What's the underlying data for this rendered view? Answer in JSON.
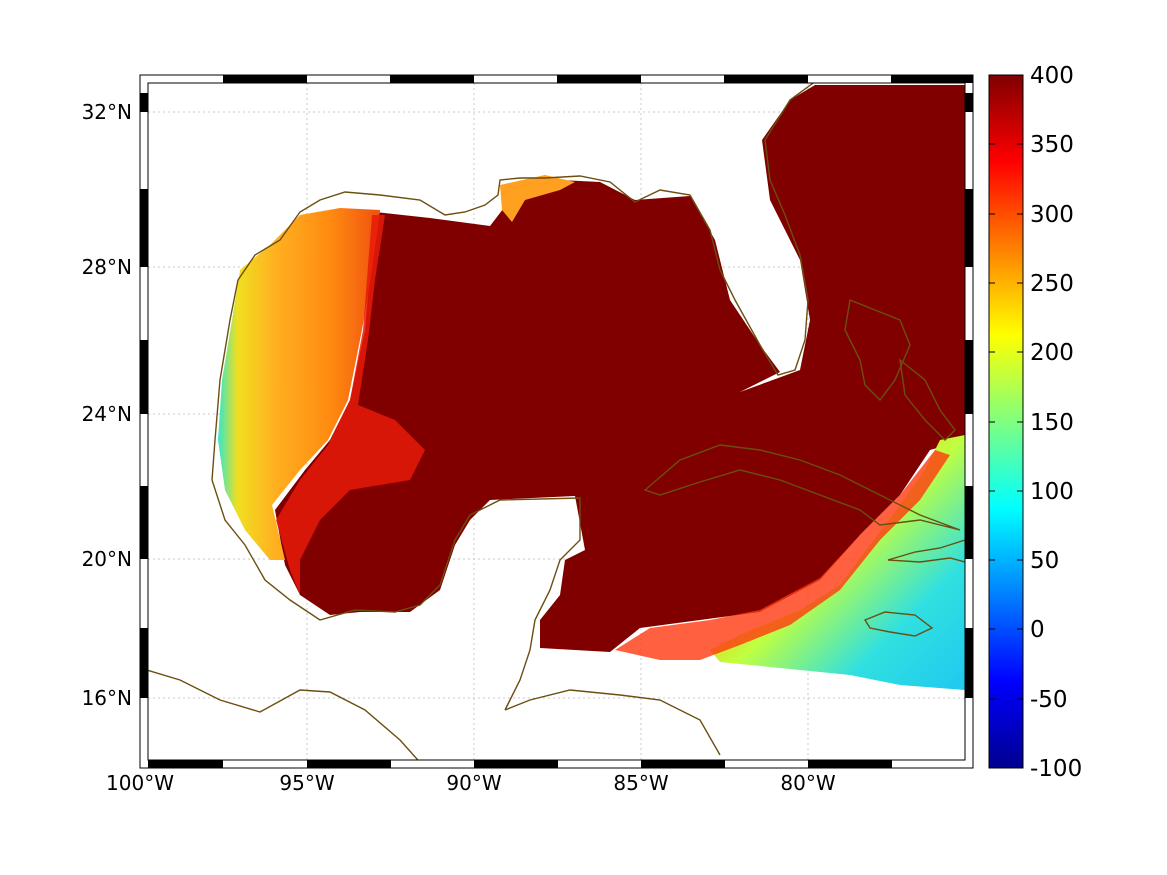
{
  "map": {
    "x_ticks": [
      "100°W",
      "95°W",
      "90°W",
      "85°W",
      "80°W"
    ],
    "y_ticks": [
      "32°N",
      "28°N",
      "24°N",
      "20°N",
      "16°N"
    ],
    "colors": {
      "coastline": "#6b4f10",
      "grid": "#c8c8c8",
      "frame": "#000000",
      "no_data": "#ffffff"
    }
  },
  "colorbar": {
    "colormap": "jet",
    "tick_labels": [
      "400",
      "350",
      "300",
      "250",
      "200",
      "150",
      "100",
      "50",
      "0",
      "-50",
      "-100"
    ],
    "range": [
      -100,
      400
    ]
  }
}
